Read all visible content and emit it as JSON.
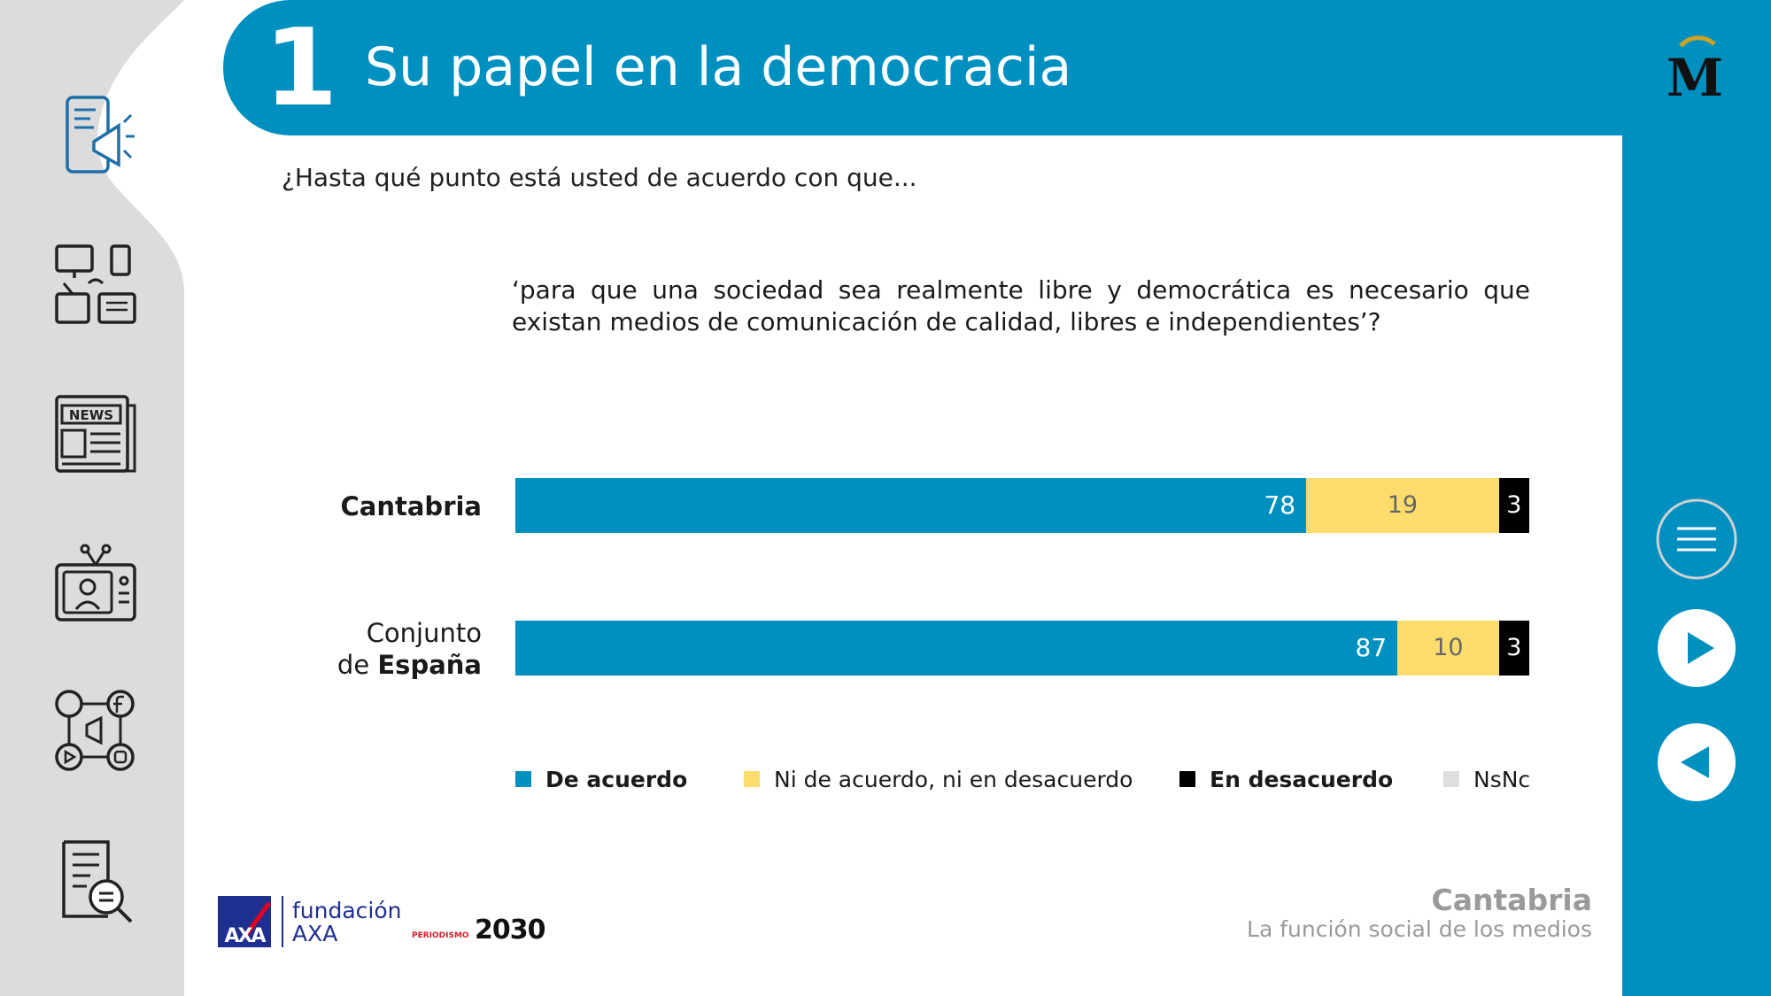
{
  "header": {
    "chapter_number": "1",
    "title": "Su papel en la democracia"
  },
  "question": "¿Hasta qué punto está usted de acuerdo con que...",
  "statement": "‘para que una sociedad sea realmente libre y democrática es necesario que existan medios de comunicación de calidad, libres e independientes’?",
  "categories": {
    "cantabria": "Cantabria",
    "espana_line1": "Conjunto",
    "espana_prefix": "de ",
    "espana_bold": "España"
  },
  "chart_data": {
    "type": "bar",
    "orientation": "horizontal-stacked",
    "categories": [
      "Cantabria",
      "Conjunto de España"
    ],
    "series": [
      {
        "name": "De acuerdo",
        "color": "#0090c0",
        "values": [
          78,
          87
        ]
      },
      {
        "name": "Ni de acuerdo, ni en desacuerdo",
        "color": "#fddc6e",
        "values": [
          19,
          10
        ]
      },
      {
        "name": "En desacuerdo",
        "color": "#000000",
        "values": [
          3,
          3
        ]
      },
      {
        "name": "NsNc",
        "color": "#dedede",
        "values": [
          0,
          0
        ]
      }
    ],
    "xlim": [
      0,
      100
    ],
    "grid": false,
    "legend_position": "bottom"
  },
  "legend": {
    "items": [
      "De acuerdo",
      "Ni de acuerdo, ni en desacuerdo",
      "En desacuerdo",
      "NsNc"
    ]
  },
  "footer": {
    "region": "Cantabria",
    "subtitle": "La función social de los medios",
    "fundacion_line1": "fundación",
    "fundacion_line2": "AXA",
    "axa_logo": "AXA",
    "periodismo": "PERIODISMO",
    "p2030": "2030"
  },
  "icons": [
    "phone-megaphone-icon",
    "devices-icon",
    "newspaper-icon",
    "tv-presenter-icon",
    "social-media-icon",
    "document-search-icon",
    "menu-icon",
    "next-icon",
    "previous-icon"
  ],
  "sidebar": {
    "newspaper_text": "NEWS"
  },
  "logo": {
    "letter": "M"
  },
  "colors": {
    "accent": "#0090c0",
    "neutral": "#fddc6e",
    "disagree": "#000000",
    "nsnc": "#dedede"
  }
}
